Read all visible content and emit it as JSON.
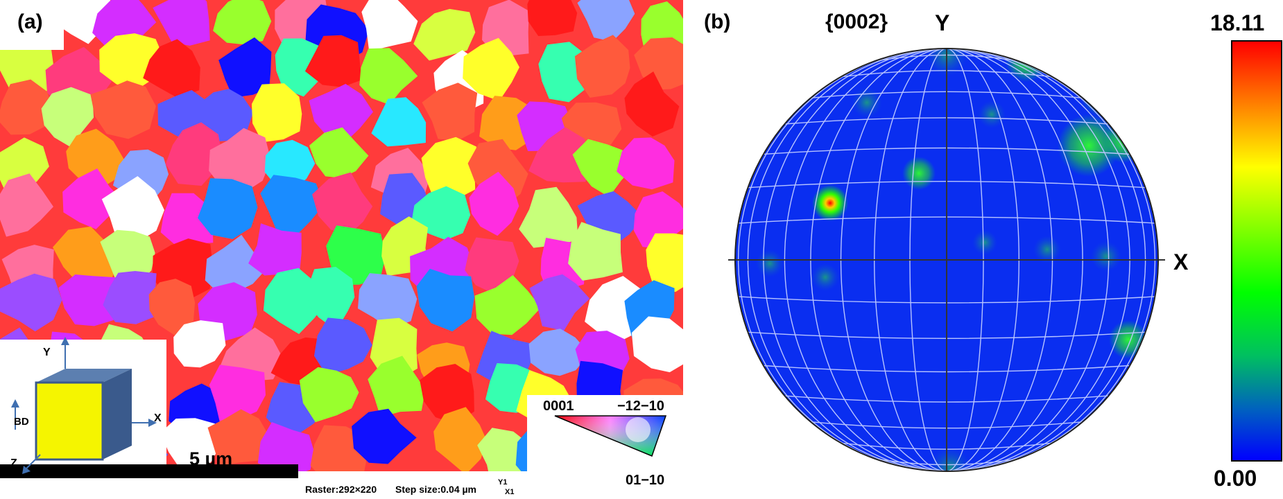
{
  "panel_a": {
    "label": "(a)",
    "scale_bar_label": "5 µm",
    "raster_text": "Raster:292×220",
    "step_text": "Step size:0.04 µm",
    "axis_y1": "Y1",
    "axis_x1": "X1",
    "coord_system": {
      "y": "Y",
      "x": "X",
      "z": "Z",
      "bd": "BD",
      "cube_front_color": "#f5f500",
      "cube_side_color": "#3a5a8c"
    },
    "ipf_key": {
      "top_left": "0001",
      "top_right": "−12−10",
      "bottom": "01−10"
    }
  },
  "panel_b": {
    "label": "(b)",
    "plane": "{0002}",
    "axis_y": "Y",
    "axis_x": "X",
    "colorbar": {
      "max_label": "18.11",
      "min_label": "0.00",
      "max": 18.11,
      "min": 0.0,
      "colors": [
        "#0000ff",
        "#00ff00",
        "#ffff00",
        "#ff0000"
      ]
    },
    "background_color": "#0a2ef0"
  },
  "grain_colors": [
    "#ff1a1a",
    "#ff5a3c",
    "#ff6f9d",
    "#ff2de0",
    "#d42dff",
    "#9b4dff",
    "#5a5aff",
    "#1010ff",
    "#1a8cff",
    "#28e8ff",
    "#36ffb0",
    "#2dff4a",
    "#99ff2d",
    "#d8ff40",
    "#ffff2a",
    "#ff9d1a",
    "#ff3b7d",
    "#c7ff7a",
    "#8aa3ff",
    "#ffffff"
  ]
}
